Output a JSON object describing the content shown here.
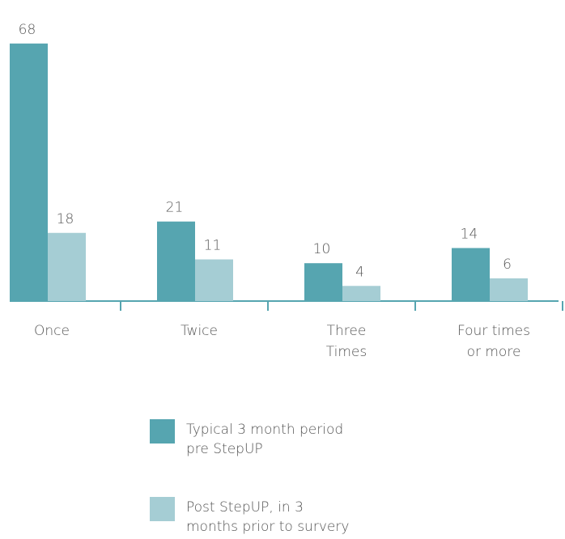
{
  "chart_data": {
    "type": "bar",
    "categories": [
      "Once",
      "Twice",
      "Three Times",
      "Four times or more"
    ],
    "series": [
      {
        "name": "Typical 3 month period pre StepUP",
        "color": "#56a5b0",
        "values": [
          68,
          21,
          10,
          14
        ]
      },
      {
        "name": "Post StepUP, in 3 months prior to survery",
        "color": "#a5cdd4",
        "values": [
          18,
          11,
          4,
          6
        ]
      }
    ]
  }
}
